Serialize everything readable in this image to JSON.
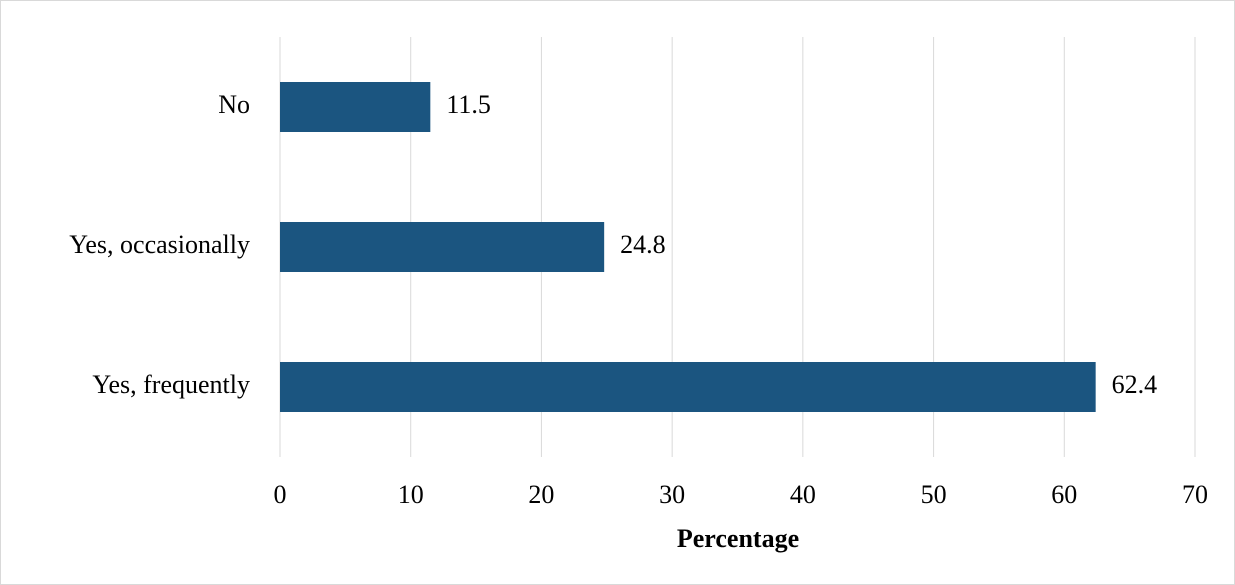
{
  "chart_data": {
    "type": "bar",
    "orientation": "horizontal",
    "x_label": "Percentage",
    "categories": [
      "No",
      "Yes, occasionally",
      "Yes, frequently"
    ],
    "values": [
      11.5,
      24.8,
      62.4
    ],
    "color": "#1b5580",
    "xlim": [
      0,
      70
    ],
    "xticks": [
      0,
      10,
      20,
      30,
      40,
      50,
      60,
      70
    ],
    "grid": true,
    "data_labels": true
  }
}
